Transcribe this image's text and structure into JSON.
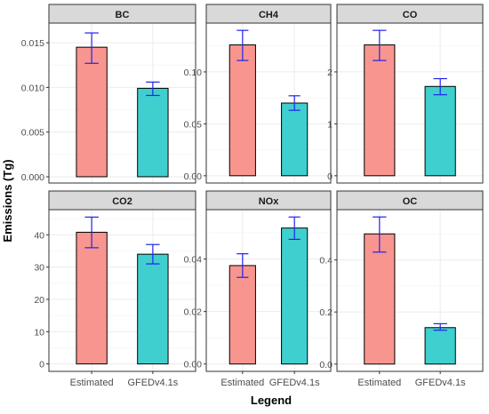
{
  "figure": {
    "ylabel": "Emissions (Tg)",
    "xlabel": "Legend"
  },
  "colors": {
    "estimated": "#f8958f",
    "gfed": "#3fcfcf",
    "error_bar": "#2222ee",
    "strip_bg": "#d9d9d9",
    "grid": "#ebebeb"
  },
  "chart_data": [
    {
      "type": "bar",
      "title": "BC",
      "categories": [
        "Estimated",
        "GFEDv4.1s"
      ],
      "values": [
        0.0145,
        0.0099
      ],
      "error_low": [
        0.0127,
        0.0091
      ],
      "error_high": [
        0.0161,
        0.0106
      ],
      "ylim": [
        -0.0007,
        0.0172
      ],
      "yticks": [
        0.0,
        0.005,
        0.01,
        0.015
      ],
      "ytick_labels": [
        "0.000",
        "0.005",
        "0.010",
        "0.015"
      ],
      "grid": true
    },
    {
      "type": "bar",
      "title": "CH4",
      "categories": [
        "Estimated",
        "GFEDv4.1s"
      ],
      "values": [
        0.126,
        0.07
      ],
      "error_low": [
        0.111,
        0.063
      ],
      "error_high": [
        0.14,
        0.077
      ],
      "ylim": [
        -0.007,
        0.147
      ],
      "yticks": [
        0.0,
        0.05,
        0.1
      ],
      "ytick_labels": [
        "0.00",
        "0.05",
        "0.10"
      ],
      "grid": true
    },
    {
      "type": "bar",
      "title": "CO",
      "categories": [
        "Estimated",
        "GFEDv4.1s"
      ],
      "values": [
        2.52,
        1.72
      ],
      "error_low": [
        2.22,
        1.56
      ],
      "error_high": [
        2.8,
        1.87
      ],
      "ylim": [
        -0.14,
        2.94
      ],
      "yticks": [
        0,
        1,
        2
      ],
      "ytick_labels": [
        "0",
        "1",
        "2"
      ],
      "grid": true
    },
    {
      "type": "bar",
      "title": "CO2",
      "categories": [
        "Estimated",
        "GFEDv4.1s"
      ],
      "values": [
        40.8,
        34.0
      ],
      "error_low": [
        36.0,
        31.0
      ],
      "error_high": [
        45.5,
        37.0
      ],
      "ylim": [
        -2.3,
        47.8
      ],
      "yticks": [
        0,
        10,
        20,
        30,
        40
      ],
      "ytick_labels": [
        "0",
        "10",
        "20",
        "30",
        "40"
      ],
      "grid": true
    },
    {
      "type": "bar",
      "title": "NOx",
      "categories": [
        "Estimated",
        "GFEDv4.1s"
      ],
      "values": [
        0.0375,
        0.0518
      ],
      "error_low": [
        0.033,
        0.0475
      ],
      "error_high": [
        0.042,
        0.056
      ],
      "ylim": [
        -0.0028,
        0.0588
      ],
      "yticks": [
        0.0,
        0.02,
        0.04
      ],
      "ytick_labels": [
        "0.00",
        "0.02",
        "0.04"
      ],
      "grid": true
    },
    {
      "type": "bar",
      "title": "OC",
      "categories": [
        "Estimated",
        "GFEDv4.1s"
      ],
      "values": [
        0.5,
        0.14
      ],
      "error_low": [
        0.43,
        0.13
      ],
      "error_high": [
        0.565,
        0.155
      ],
      "ylim": [
        -0.028,
        0.593
      ],
      "yticks": [
        0.0,
        0.2,
        0.4
      ],
      "ytick_labels": [
        "0.0",
        "0.2",
        "0.4"
      ],
      "grid": true
    }
  ]
}
